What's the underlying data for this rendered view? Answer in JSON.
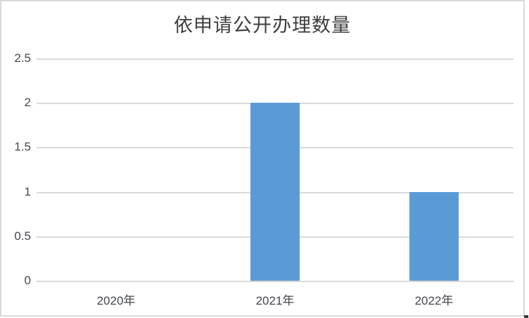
{
  "chart": {
    "title": "依申请公开办理数量"
  },
  "chart_data": {
    "type": "bar",
    "title": "依申请公开办理数量",
    "categories": [
      "2020年",
      "2021年",
      "2022年"
    ],
    "values": [
      0,
      2,
      1
    ],
    "xlabel": "",
    "ylabel": "",
    "ylim": [
      0,
      2.5
    ],
    "ytick_step": 0.5,
    "yticks": [
      "0",
      "0.5",
      "1",
      "1.5",
      "2",
      "2.5"
    ],
    "grid": true,
    "legend": "none",
    "colors": {
      "bar": "#5b9bd5",
      "gridline": "#d9d9d9",
      "axis_line": "#d9d9d9",
      "text": "#44474c",
      "title_text": "#3f3f3f",
      "frame_border": "#d9d9d9",
      "background": "#ffffff"
    }
  }
}
